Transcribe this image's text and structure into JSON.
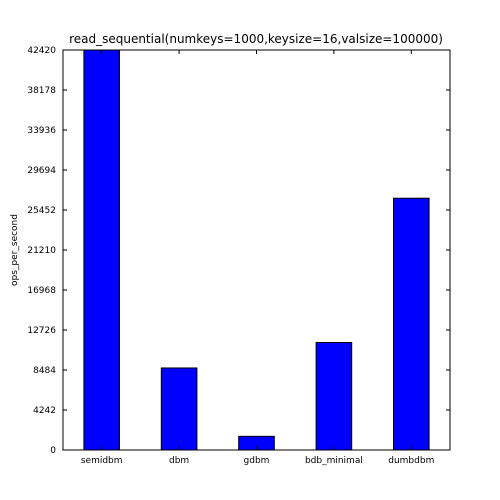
{
  "chart_data": {
    "type": "bar",
    "title": "read_sequential(numkeys=1000,keysize=16,valsize=100000)",
    "xlabel": "",
    "ylabel": "ops_per_second",
    "categories": [
      "semidbm",
      "dbm",
      "gdbm",
      "bdb_minimal",
      "dumbdbm"
    ],
    "values": [
      42420,
      8700,
      1450,
      11400,
      26700
    ],
    "ylim": [
      0,
      42420
    ],
    "yticks": [
      0,
      4242,
      8484,
      12726,
      16968,
      21210,
      25452,
      29694,
      33936,
      38178,
      42420
    ],
    "bar_color": "#0000ff",
    "grid": false
  }
}
